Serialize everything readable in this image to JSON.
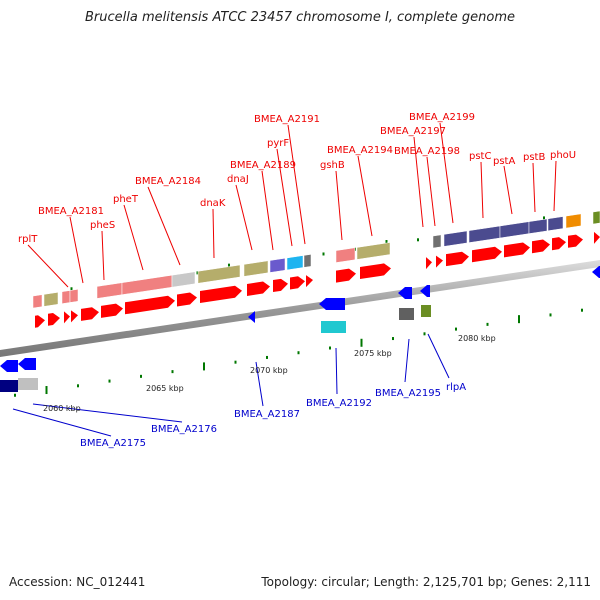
{
  "title": "Brucella melitensis ATCC 23457 chromosome I, complete genome",
  "footer": {
    "accession": "Accession: NC_012441",
    "summary": "Topology: circular; Length: 2,125,701 bp; Genes: 2,111"
  },
  "colors": {
    "forward_label": "#ee0000",
    "reverse_label": "#0000cc",
    "cds_forward": "#ff0000",
    "cds_reverse": "#0000ff",
    "backbone": "#999999",
    "tick": "#007700"
  },
  "scale": {
    "unit": "kbp",
    "ticks": [
      {
        "label": "2060 kbp"
      },
      {
        "label": "2065 kbp"
      },
      {
        "label": "2070 kbp"
      },
      {
        "label": "2075 kbp"
      },
      {
        "label": "2080 kbp"
      }
    ]
  },
  "forward_labels": [
    {
      "text": "rplT"
    },
    {
      "text": "BMEA_A2181"
    },
    {
      "text": "pheS"
    },
    {
      "text": "pheT"
    },
    {
      "text": "BMEA_A2184"
    },
    {
      "text": "dnaK"
    },
    {
      "text": "dnaJ"
    },
    {
      "text": "BMEA_A2189"
    },
    {
      "text": "pyrF"
    },
    {
      "text": "BMEA_A2191"
    },
    {
      "text": "gshB"
    },
    {
      "text": "BMEA_A2194"
    },
    {
      "text": "BMEA_A2197"
    },
    {
      "text": "BMEA_A2198"
    },
    {
      "text": "BMEA_A2199"
    },
    {
      "text": "pstC"
    },
    {
      "text": "pstA"
    },
    {
      "text": "pstB"
    },
    {
      "text": "phoU"
    }
  ],
  "reverse_labels": [
    {
      "text": "BMEA_A2175"
    },
    {
      "text": "BMEA_A2176"
    },
    {
      "text": "BMEA_A2187"
    },
    {
      "text": "BMEA_A2192"
    },
    {
      "text": "BMEA_A2195"
    },
    {
      "text": "rlpA"
    }
  ]
}
